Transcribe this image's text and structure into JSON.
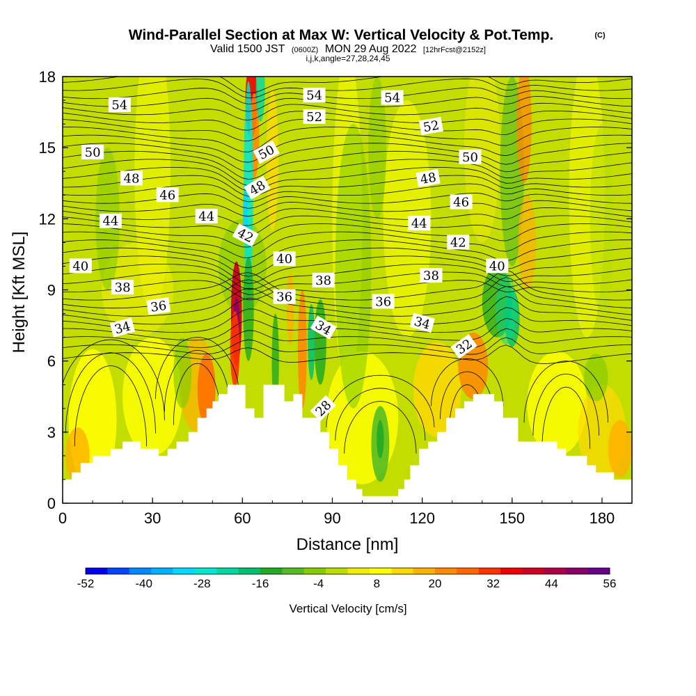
{
  "title": {
    "main": "Wind-Parallel Section at Max W: Vertical Velocity & Pot.Temp.",
    "copyright": "(C)",
    "line2_valid": "Valid 1500 JST",
    "line2_utc": "(0600Z)",
    "line2_date": "MON 29 Aug 2022",
    "line2_fcst": "[12hrFcst@2152z]",
    "line3": "i,j,k,angle=27,28,24,45"
  },
  "chart_data": {
    "type": "heatmap",
    "xlabel": "Distance [nm]",
    "ylabel": "Height [Kft MSL]",
    "xlim": [
      0,
      190
    ],
    "ylim": [
      0,
      18
    ],
    "xticks": [
      0,
      30,
      60,
      90,
      120,
      150,
      180
    ],
    "yticks": [
      0,
      3,
      6,
      9,
      12,
      15,
      18
    ],
    "colorbar": {
      "title": "Vertical Velocity [cm/s]",
      "tick_labels": [
        "-52",
        "-40",
        "-28",
        "-16",
        "-4",
        "8",
        "20",
        "32",
        "44",
        "56"
      ],
      "colors": [
        "#0000ee",
        "#0044ff",
        "#0088ff",
        "#00b0ff",
        "#00d8ff",
        "#00e8d0",
        "#00d8a0",
        "#00c070",
        "#22aa22",
        "#55bb22",
        "#88cc00",
        "#bbdd00",
        "#eeee00",
        "#ffff00",
        "#ffd800",
        "#ffb000",
        "#ff8800",
        "#ff6600",
        "#ff3300",
        "#ee0000",
        "#cc0022",
        "#aa0044",
        "#880066",
        "#660088"
      ]
    },
    "terrain": [
      [
        0,
        1.0
      ],
      [
        3,
        1.0
      ],
      [
        3,
        1.3
      ],
      [
        6,
        1.3
      ],
      [
        6,
        1.7
      ],
      [
        10,
        1.7
      ],
      [
        10,
        2.0
      ],
      [
        16,
        2.0
      ],
      [
        16,
        2.3
      ],
      [
        20,
        2.3
      ],
      [
        20,
        2.6
      ],
      [
        26,
        2.6
      ],
      [
        26,
        2.3
      ],
      [
        32,
        2.3
      ],
      [
        32,
        2.0
      ],
      [
        35,
        2.0
      ],
      [
        35,
        2.3
      ],
      [
        38,
        2.3
      ],
      [
        38,
        2.6
      ],
      [
        42,
        2.6
      ],
      [
        42,
        3.0
      ],
      [
        45,
        3.0
      ],
      [
        45,
        3.6
      ],
      [
        48,
        3.6
      ],
      [
        48,
        4.0
      ],
      [
        50,
        4.0
      ],
      [
        50,
        4.3
      ],
      [
        52,
        4.3
      ],
      [
        52,
        4.6
      ],
      [
        55,
        4.6
      ],
      [
        55,
        5.0
      ],
      [
        61,
        5.0
      ],
      [
        61,
        4.0
      ],
      [
        64,
        4.0
      ],
      [
        64,
        3.6
      ],
      [
        67,
        3.6
      ],
      [
        67,
        5.0
      ],
      [
        74,
        5.0
      ],
      [
        74,
        4.3
      ],
      [
        77,
        4.3
      ],
      [
        77,
        4.6
      ],
      [
        80,
        4.6
      ],
      [
        80,
        3.6
      ],
      [
        86,
        3.6
      ],
      [
        86,
        3.0
      ],
      [
        89,
        3.0
      ],
      [
        89,
        2.3
      ],
      [
        92,
        2.3
      ],
      [
        92,
        1.6
      ],
      [
        95,
        1.6
      ],
      [
        95,
        1.0
      ],
      [
        98,
        1.0
      ],
      [
        98,
        0.6
      ],
      [
        100,
        0.6
      ],
      [
        100,
        0.3
      ],
      [
        112,
        0.3
      ],
      [
        112,
        0.6
      ],
      [
        114,
        0.6
      ],
      [
        114,
        1.0
      ],
      [
        116,
        1.0
      ],
      [
        116,
        1.6
      ],
      [
        119,
        1.6
      ],
      [
        119,
        2.3
      ],
      [
        122,
        2.3
      ],
      [
        122,
        2.6
      ],
      [
        125,
        2.6
      ],
      [
        125,
        3.0
      ],
      [
        128,
        3.0
      ],
      [
        128,
        3.6
      ],
      [
        131,
        3.6
      ],
      [
        131,
        4.0
      ],
      [
        134,
        4.0
      ],
      [
        134,
        4.3
      ],
      [
        137,
        4.3
      ],
      [
        137,
        4.6
      ],
      [
        144,
        4.6
      ],
      [
        144,
        4.3
      ],
      [
        147,
        4.3
      ],
      [
        147,
        3.6
      ],
      [
        152,
        3.6
      ],
      [
        152,
        2.6
      ],
      [
        165,
        2.6
      ],
      [
        165,
        2.3
      ],
      [
        168,
        2.3
      ],
      [
        168,
        2.0
      ],
      [
        175,
        2.0
      ],
      [
        175,
        1.6
      ],
      [
        178,
        1.6
      ],
      [
        178,
        1.3
      ],
      [
        184,
        1.3
      ],
      [
        184,
        1.0
      ],
      [
        190,
        1.0
      ]
    ],
    "theta_contour_labels": [
      {
        "text": "54",
        "x": 19,
        "y": 16.8,
        "angle": 0
      },
      {
        "text": "54",
        "x": 84,
        "y": 17.2,
        "angle": 0
      },
      {
        "text": "54",
        "x": 110,
        "y": 17.1,
        "angle": 0
      },
      {
        "text": "52",
        "x": 84,
        "y": 16.3,
        "angle": 0
      },
      {
        "text": "52",
        "x": 123,
        "y": 15.9,
        "angle": -10
      },
      {
        "text": "50",
        "x": 10,
        "y": 14.8,
        "angle": 0
      },
      {
        "text": "50",
        "x": 68,
        "y": 14.8,
        "angle": -28
      },
      {
        "text": "50",
        "x": 136,
        "y": 14.6,
        "angle": 0
      },
      {
        "text": "48",
        "x": 23,
        "y": 13.7,
        "angle": 0
      },
      {
        "text": "48",
        "x": 65,
        "y": 13.3,
        "angle": -30
      },
      {
        "text": "48",
        "x": 122,
        "y": 13.7,
        "angle": -10
      },
      {
        "text": "46",
        "x": 35,
        "y": 13.0,
        "angle": 0
      },
      {
        "text": "46",
        "x": 133,
        "y": 12.7,
        "angle": 0
      },
      {
        "text": "44",
        "x": 16,
        "y": 11.9,
        "angle": 0
      },
      {
        "text": "44",
        "x": 48,
        "y": 12.1,
        "angle": 0
      },
      {
        "text": "44",
        "x": 119,
        "y": 11.8,
        "angle": 0
      },
      {
        "text": "42",
        "x": 61,
        "y": 11.3,
        "angle": 28
      },
      {
        "text": "42",
        "x": 132,
        "y": 11.0,
        "angle": 0
      },
      {
        "text": "40",
        "x": 6,
        "y": 10.0,
        "angle": 0
      },
      {
        "text": "40",
        "x": 74,
        "y": 10.3,
        "angle": 0
      },
      {
        "text": "40",
        "x": 145,
        "y": 10.0,
        "angle": 0
      },
      {
        "text": "38",
        "x": 20,
        "y": 9.1,
        "angle": 0
      },
      {
        "text": "38",
        "x": 87,
        "y": 9.4,
        "angle": 0
      },
      {
        "text": "38",
        "x": 123,
        "y": 9.6,
        "angle": 0
      },
      {
        "text": "36",
        "x": 32,
        "y": 8.3,
        "angle": -8
      },
      {
        "text": "36",
        "x": 74,
        "y": 8.7,
        "angle": 0
      },
      {
        "text": "36",
        "x": 107,
        "y": 8.5,
        "angle": 0
      },
      {
        "text": "34",
        "x": 20,
        "y": 7.4,
        "angle": -15
      },
      {
        "text": "34",
        "x": 87,
        "y": 7.4,
        "angle": 30
      },
      {
        "text": "34",
        "x": 120,
        "y": 7.6,
        "angle": 15
      },
      {
        "text": "32",
        "x": 134,
        "y": 6.6,
        "angle": -35
      },
      {
        "text": "28",
        "x": 87,
        "y": 4.0,
        "angle": -45
      }
    ]
  }
}
